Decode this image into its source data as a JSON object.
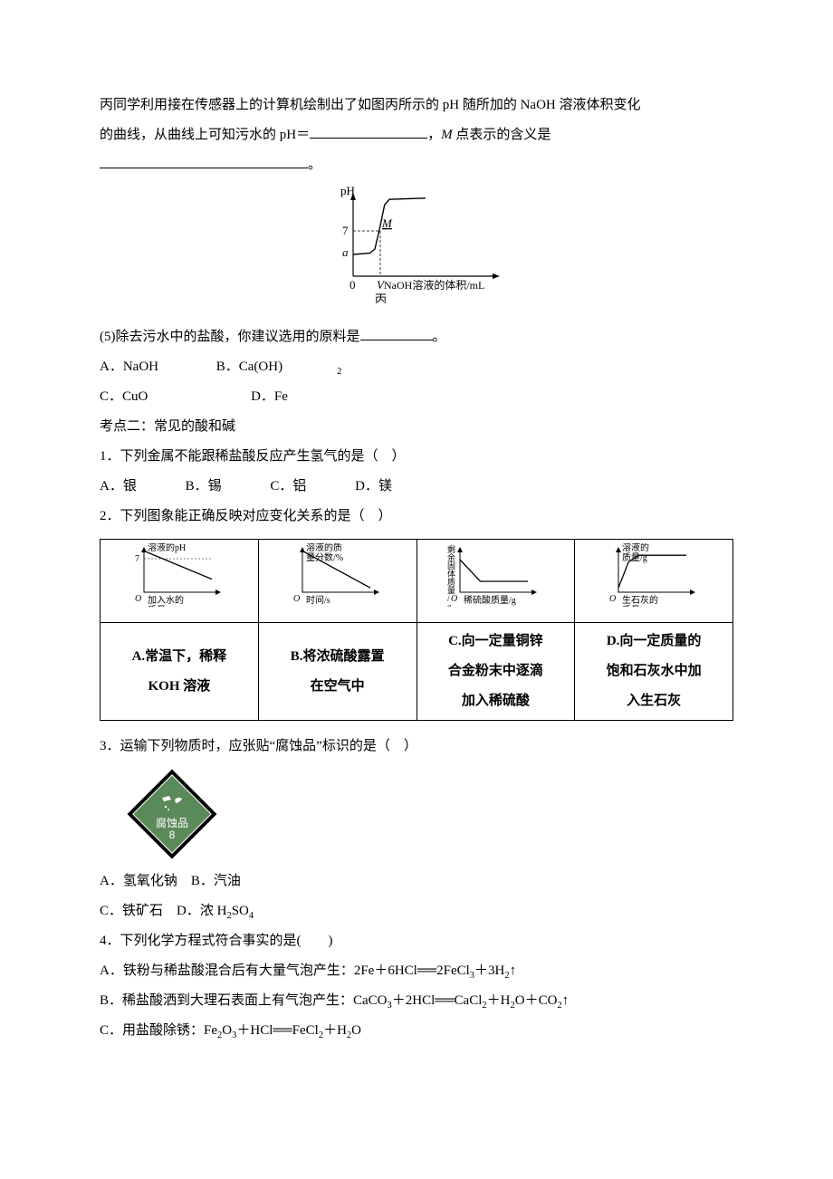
{
  "intro": {
    "line1_a": "丙同学利用接在传感器上的计算机绘制出了如图丙所示的 pH 随所加的 NaOH 溶液体积变化",
    "line2_a": "的曲线，从曲线上可知污水的 pH＝",
    "line2_b": "，",
    "line2_m": "M",
    "line2_c": " 点表示的含义是",
    "line2_end": "。"
  },
  "chart_main": {
    "type": "line",
    "y_label": "pH",
    "y_tick_labels": [
      "7",
      "a"
    ],
    "y_tick_vals": [
      7,
      3.2
    ],
    "point_label": "M",
    "x_origin": "0",
    "x_tick_label": "V",
    "x_axis_label": " NaOH溶液的体积/mL",
    "sub_label": "丙",
    "curve": {
      "x": [
        0,
        14,
        18,
        22,
        26,
        30,
        60
      ],
      "y": [
        3.2,
        3.4,
        4.0,
        7.0,
        10.5,
        11.3,
        11.5
      ]
    },
    "axis_color": "#000000",
    "background": "#ffffff",
    "font_size_axis": 13
  },
  "q5": {
    "stem": "(5)除去污水中的盐酸，你建议选用的原料是",
    "end": "。",
    "opts": {
      "A": "A．NaOH",
      "B": "B．Ca(OH)",
      "B_sub": "2",
      "C": "C．CuO",
      "D": "D．Fe"
    }
  },
  "section": "考点二：常见的酸和碱",
  "q1": {
    "stem": "1．下列金属不能跟稀盐酸反应产生氢气的是（　）",
    "A": "A．银",
    "B": "B．锡",
    "C": "C．铝",
    "D": "D．镁"
  },
  "q2": {
    "stem": "2．下列图象能正确反映对应变化关系的是（　）",
    "mini": [
      {
        "type": "line",
        "y_label": "溶液的pH",
        "y_tick": "7",
        "x_label": "加入水的\n质量/g",
        "origin": "O",
        "curve": {
          "x": [
            0,
            40
          ],
          "y": [
            38,
            12
          ]
        },
        "cap": "A.常温下，稀释\nKOH 溶液"
      },
      {
        "type": "line",
        "y_label": "溶液的质\n量分数/%",
        "x_label": "时间/s",
        "origin": "O",
        "curve": {
          "x": [
            0,
            40
          ],
          "y": [
            38,
            4
          ]
        },
        "cap": "B.将浓硫酸露置\n在空气中"
      },
      {
        "type": "line",
        "y_label": "剩\n余\n固\n体\n质\n量\n/g",
        "x_label": "稀硫酸质量/g",
        "origin": "O",
        "curve": {
          "x": [
            0,
            12,
            40
          ],
          "y": [
            30,
            10,
            10
          ]
        },
        "cap": "C.向一定量铜锌\n合金粉末中逐滴\n加入稀硫酸"
      },
      {
        "type": "line",
        "y_label": "溶液的\n质量/g",
        "x_label": "生石灰的\n质量/g",
        "origin": "O",
        "curve": {
          "x": [
            0,
            6,
            12,
            40
          ],
          "y": [
            4,
            28,
            34,
            34
          ]
        },
        "cap": "D.向一定质量的\n饱和石灰水中加\n入生石灰"
      }
    ]
  },
  "q3": {
    "stem": "3．运输下列物质时，应张贴“腐蚀品”标识的是（　）",
    "label_top": "腐蚀品",
    "label_num": "8",
    "A": "A．氢氧化钠",
    "B": "B．汽油",
    "C": "C．铁矿石",
    "D_pre": "D．浓 H",
    "D_sub1": "2",
    "D_mid": "SO",
    "D_sub2": "4"
  },
  "q4": {
    "stem": "4．下列化学方程式符合事实的是(　　)",
    "A_pre": "A．铁粉与稀盐酸混合后有大量气泡产生：2Fe＋6HCl",
    "A_post": "2FeCl",
    "A_s1": "3",
    "A_p2": "＋3H",
    "A_s2": "2",
    "A_up": "↑",
    "B_pre": "B．稀盐酸洒到大理石表面上有气泡产生：CaCO",
    "B_s1": "3",
    "B_p2": "＋2HCl",
    "B_post": "CaCl",
    "B_s2": "2",
    "B_p3": "＋H",
    "B_s3": "2",
    "B_p4": "O＋CO",
    "B_s4": "2",
    "B_up": "↑",
    "C_pre": "C．用盐酸除锈：Fe",
    "C_s1": "2",
    "C_p2": "O",
    "C_s2": "3",
    "C_p3": "＋HCl",
    "C_post": "FeCl",
    "C_s3": "2",
    "C_p4": "＋H",
    "C_s4": "2",
    "C_p5": "O"
  },
  "eq_sign": "══"
}
